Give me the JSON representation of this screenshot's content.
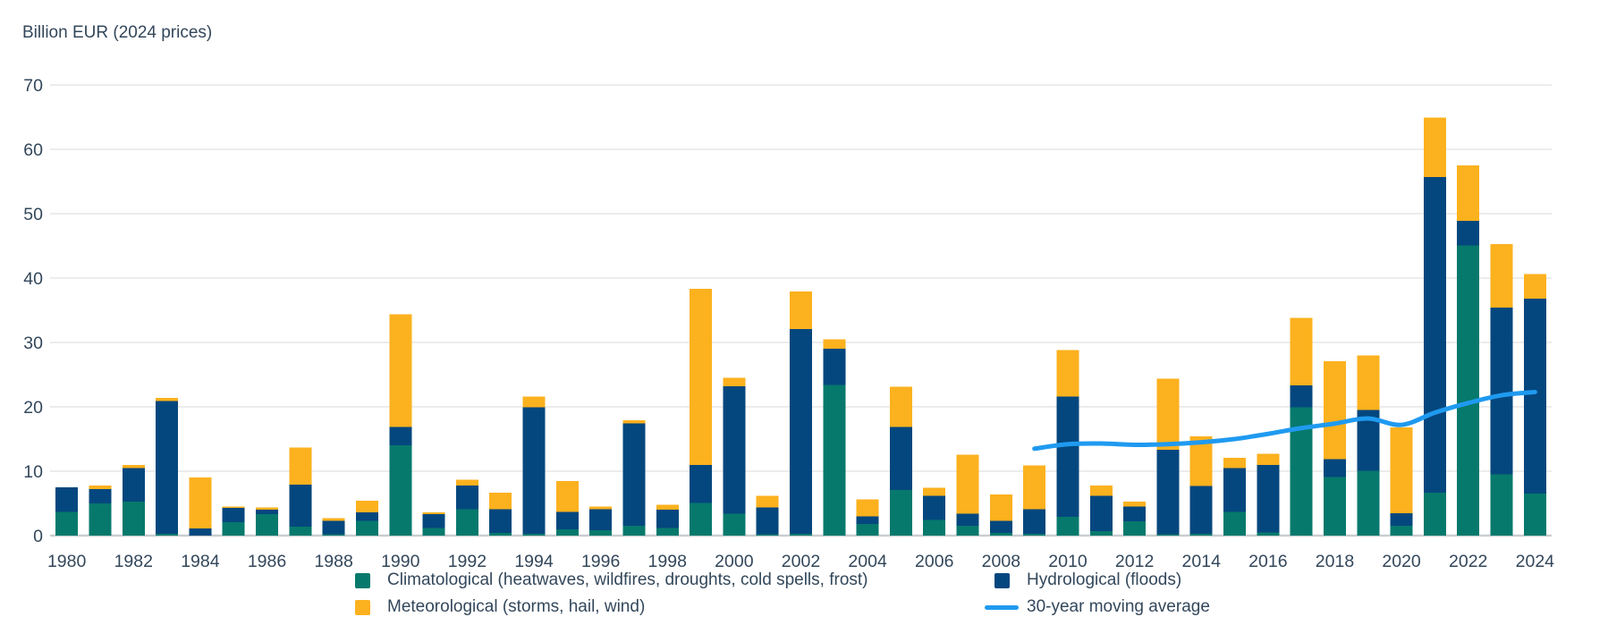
{
  "title": "Billion EUR (2024 prices)",
  "colors": {
    "climatological": "#06796c",
    "hydrological": "#04477e",
    "meteorological": "#fcb11e",
    "moving_average": "#1f9af0",
    "text": "#33475b",
    "gridline": "#ececec",
    "baseline": "#c9cdd1",
    "background": "#ffffff"
  },
  "legend": {
    "items": [
      {
        "key": "climatological",
        "label": "Climatological (heatwaves, wildfires, droughts, cold spells, frost)",
        "marker": "square",
        "color": "#06796c"
      },
      {
        "key": "hydrological",
        "label": "Hydrological (floods)",
        "marker": "square",
        "color": "#04477e"
      },
      {
        "key": "meteorological",
        "label": "Meteorological (storms, hail, wind)",
        "marker": "square",
        "color": "#fcb11e"
      },
      {
        "key": "moving_average",
        "label": "30-year moving average",
        "marker": "line",
        "color": "#1f9af0"
      }
    ]
  },
  "chart_data": {
    "type": "bar",
    "stacked": true,
    "title": "Billion EUR (2024 prices)",
    "ylabel": "Billion EUR (2024 prices)",
    "xlabel": "",
    "ylim": [
      0,
      70
    ],
    "y_ticks": [
      0,
      10,
      20,
      30,
      40,
      50,
      60,
      70
    ],
    "grid": true,
    "legend_position": "bottom",
    "categories": [
      1980,
      1981,
      1982,
      1983,
      1984,
      1985,
      1986,
      1987,
      1988,
      1989,
      1990,
      1991,
      1992,
      1993,
      1994,
      1995,
      1996,
      1997,
      1998,
      1999,
      2000,
      2001,
      2002,
      2003,
      2004,
      2005,
      2006,
      2007,
      2008,
      2009,
      2010,
      2011,
      2012,
      2013,
      2014,
      2015,
      2016,
      2017,
      2018,
      2019,
      2020,
      2021,
      2022,
      2023,
      2024
    ],
    "x_tick_labels": [
      "1980",
      "1982",
      "1984",
      "1986",
      "1988",
      "1990",
      "1992",
      "1994",
      "1996",
      "1998",
      "2000",
      "2002",
      "2004",
      "2006",
      "2008",
      "2010",
      "2012",
      "2014",
      "2016",
      "2018",
      "2020",
      "2022",
      "2024"
    ],
    "series": [
      {
        "key": "climatological",
        "name": "Climatological (heatwaves, wildfires, droughts, cold spells, frost)",
        "type": "bar",
        "color": "#06796c",
        "values": [
          3.7,
          5.0,
          5.3,
          0.3,
          0.0,
          2.1,
          3.3,
          1.4,
          0.2,
          2.3,
          14.0,
          1.2,
          4.1,
          0.4,
          0.3,
          1.0,
          0.8,
          1.5,
          1.2,
          5.1,
          3.4,
          0.2,
          0.3,
          23.4,
          1.8,
          7.1,
          2.4,
          1.5,
          0.4,
          0.3,
          2.9,
          0.7,
          2.2,
          0.2,
          0.3,
          3.7,
          0.5,
          19.9,
          9.1,
          10.1,
          1.5,
          6.7,
          45.1,
          9.5,
          6.5
        ]
      },
      {
        "key": "hydrological",
        "name": "Hydrological (floods)",
        "type": "bar",
        "color": "#04477e",
        "values": [
          3.8,
          2.2,
          5.2,
          20.6,
          1.1,
          2.2,
          0.7,
          6.5,
          2.1,
          1.3,
          2.9,
          2.1,
          3.7,
          3.7,
          19.6,
          2.7,
          3.3,
          15.9,
          2.8,
          5.9,
          19.8,
          4.2,
          31.8,
          5.6,
          1.2,
          9.8,
          3.8,
          1.9,
          1.9,
          3.8,
          18.7,
          5.5,
          2.3,
          13.1,
          7.4,
          6.8,
          10.5,
          3.4,
          2.8,
          9.4,
          2.0,
          49.0,
          3.8,
          25.9,
          30.3
        ]
      },
      {
        "key": "meteorological",
        "name": "Meteorological (storms, hail, wind)",
        "type": "bar",
        "color": "#fcb11e",
        "values": [
          0.0,
          0.6,
          0.5,
          0.5,
          7.9,
          0.2,
          0.4,
          5.8,
          0.4,
          1.8,
          17.5,
          0.3,
          0.9,
          2.6,
          1.7,
          4.8,
          0.4,
          0.5,
          0.8,
          27.3,
          1.3,
          1.8,
          5.8,
          1.5,
          2.6,
          6.2,
          1.2,
          9.2,
          4.1,
          6.8,
          7.2,
          1.6,
          0.8,
          11.1,
          7.7,
          1.6,
          1.7,
          10.5,
          15.2,
          8.5,
          13.3,
          9.2,
          8.6,
          9.9,
          3.8
        ]
      },
      {
        "key": "moving_average",
        "name": "30-year moving average",
        "type": "line",
        "color": "#1f9af0",
        "start_year": 2009,
        "values": [
          13.5,
          14.2,
          14.3,
          14.1,
          14.2,
          14.5,
          15.0,
          15.8,
          16.7,
          17.4,
          18.2,
          17.2,
          19.1,
          20.6,
          21.8,
          22.3
        ]
      }
    ]
  }
}
